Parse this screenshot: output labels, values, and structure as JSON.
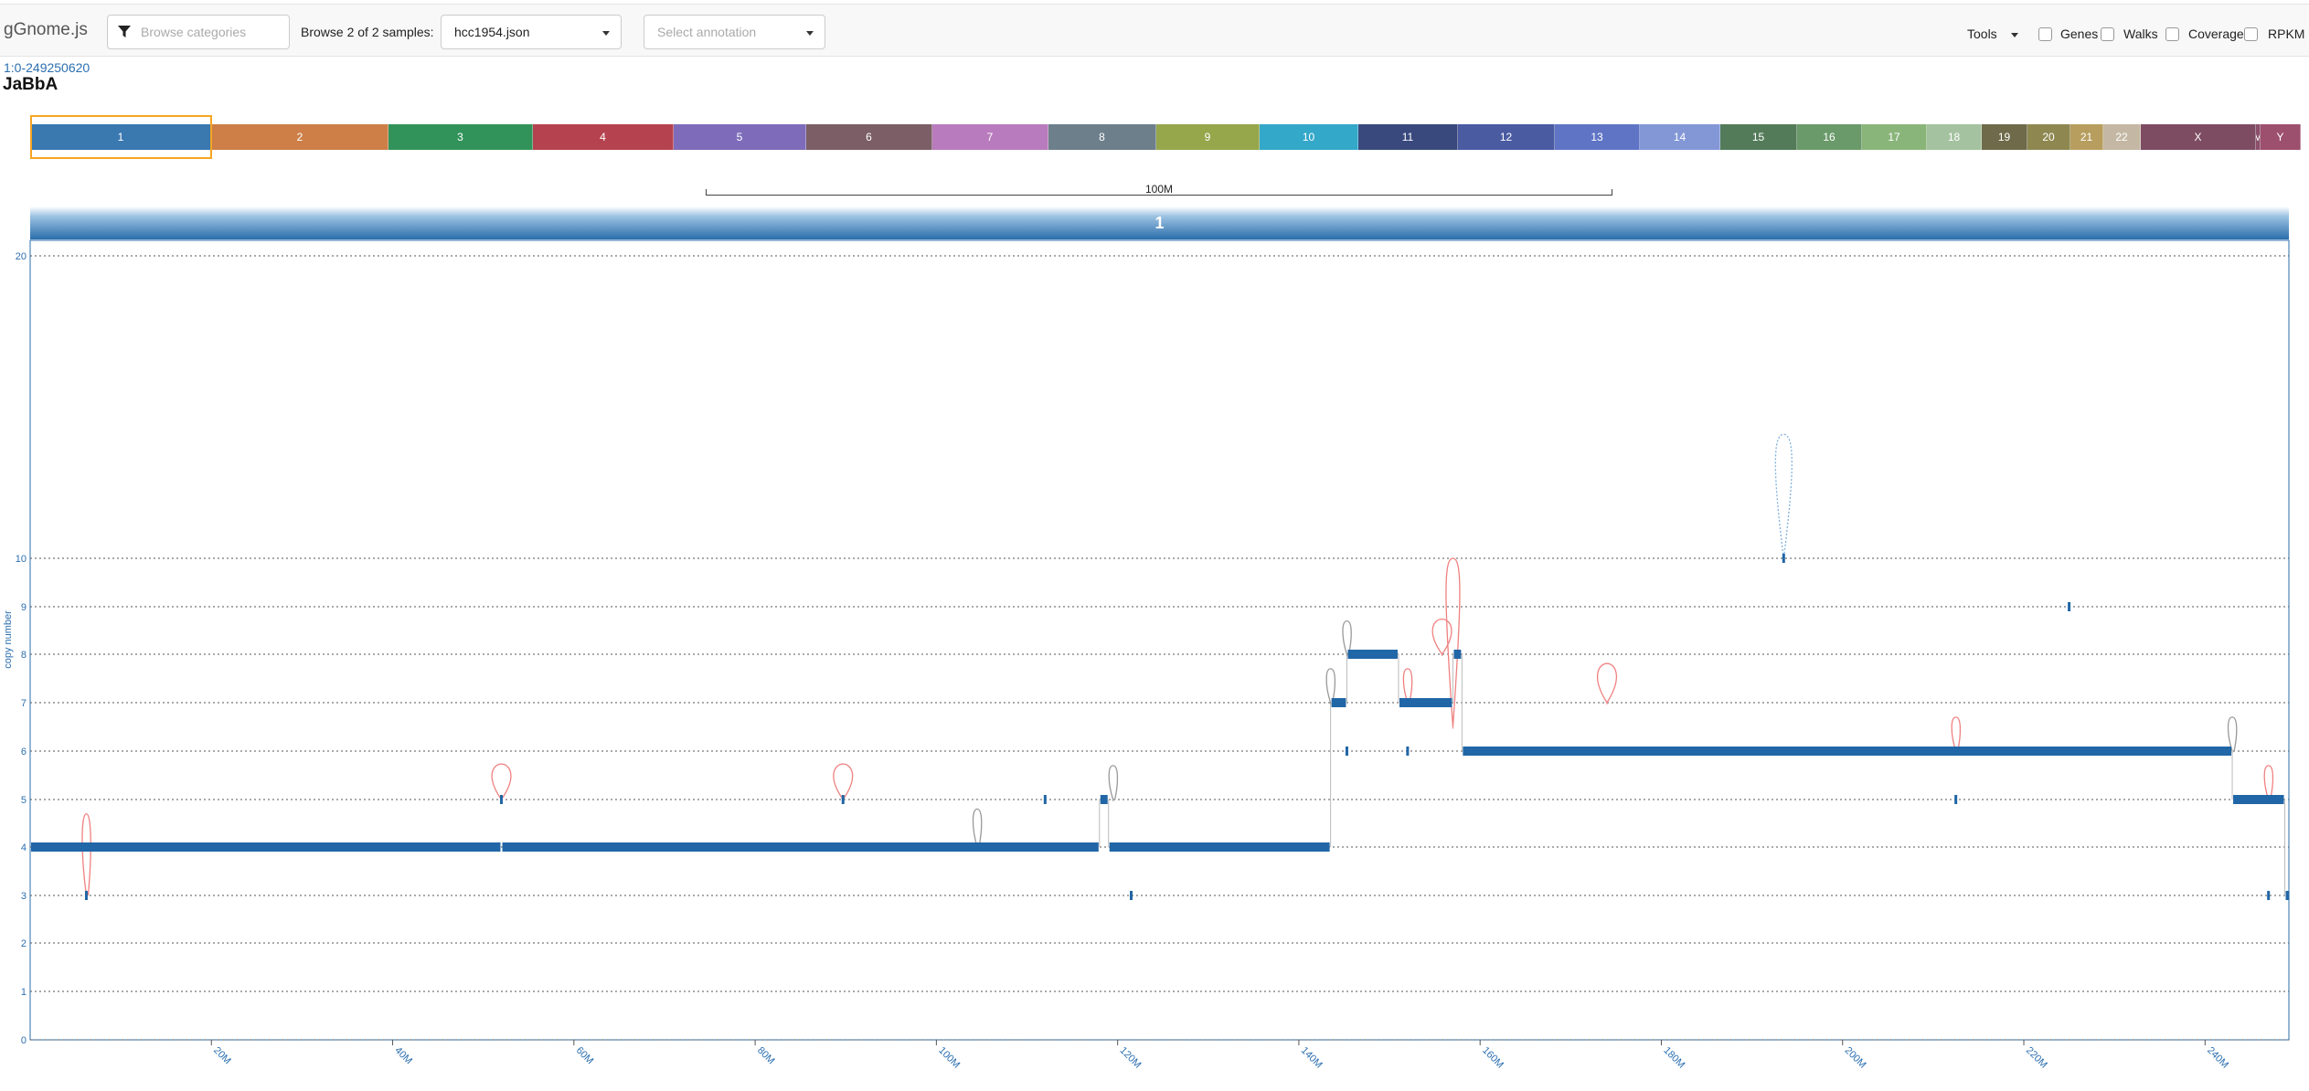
{
  "app": {
    "brand": "gGnome.js"
  },
  "toolbar": {
    "category_placeholder": "Browse categories",
    "browse_label": "Browse 2 of 2 samples:",
    "sample_value": "hcc1954.json",
    "annotation_placeholder": "Select annotation",
    "tools_label": "Tools",
    "toggles": [
      {
        "label": "Genes",
        "checked": false
      },
      {
        "label": "Walks",
        "checked": false
      },
      {
        "label": "Coverage",
        "checked": false
      },
      {
        "label": "RPKM",
        "checked": false
      }
    ]
  },
  "region": "1:0-249250620",
  "sample_title": "JaBbA",
  "chromosomes": [
    {
      "label": "1",
      "color": "#3a78b0",
      "selected": true
    },
    {
      "label": "2",
      "color": "#cd7f47"
    },
    {
      "label": "3",
      "color": "#32935a"
    },
    {
      "label": "4",
      "color": "#b5434f"
    },
    {
      "label": "5",
      "color": "#7e6cba"
    },
    {
      "label": "6",
      "color": "#7b5e66"
    },
    {
      "label": "7",
      "color": "#b87bbd"
    },
    {
      "label": "8",
      "color": "#6d7f8b"
    },
    {
      "label": "9",
      "color": "#96a64b"
    },
    {
      "label": "10",
      "color": "#34a8c9"
    },
    {
      "label": "11",
      "color": "#39497e"
    },
    {
      "label": "12",
      "color": "#4a5ba2"
    },
    {
      "label": "13",
      "color": "#5f74c5"
    },
    {
      "label": "14",
      "color": "#8397d6"
    },
    {
      "label": "15",
      "color": "#537b59"
    },
    {
      "label": "16",
      "color": "#6a9a6a"
    },
    {
      "label": "17",
      "color": "#8ab57a"
    },
    {
      "label": "18",
      "color": "#a5c2a0"
    },
    {
      "label": "19",
      "color": "#6e6a4a"
    },
    {
      "label": "20",
      "color": "#8e8850"
    },
    {
      "label": "21",
      "color": "#b79e5f"
    },
    {
      "label": "22",
      "color": "#c4b8a4"
    },
    {
      "label": "X",
      "color": "#7e4c62"
    },
    {
      "label": "M",
      "color": "#8a4f6a"
    },
    {
      "label": "Y",
      "color": "#9d4f6e"
    }
  ],
  "scale_bar_label": "100M",
  "panel_title": "1",
  "chart_data": {
    "type": "genome-graph",
    "chromosome": "1",
    "xlim": [
      0,
      249250620
    ],
    "ylim": [
      0,
      20
    ],
    "ylabel": "copy number",
    "y_ticks": [
      0,
      1,
      2,
      3,
      4,
      5,
      6,
      7,
      8,
      9,
      10,
      20
    ],
    "x_ticks": [
      "20M",
      "40M",
      "60M",
      "80M",
      "100M",
      "120M",
      "140M",
      "160M",
      "180M",
      "200M",
      "220M",
      "240M"
    ],
    "x_tick_values": [
      20000000,
      40000000,
      60000000,
      80000000,
      100000000,
      120000000,
      140000000,
      160000000,
      180000000,
      200000000,
      220000000,
      240000000
    ],
    "colors": {
      "segment": "#2166a6",
      "alt_edge": "#f08080",
      "ref_edge": "#999999",
      "loose_edge": "#7fb0dd"
    },
    "segments": [
      {
        "start": 0,
        "end": 52000000,
        "cn": 4
      },
      {
        "start": 52000000,
        "end": 118000000,
        "cn": 4
      },
      {
        "start": 118000000,
        "end": 119000000,
        "cn": 5
      },
      {
        "start": 119000000,
        "end": 143500000,
        "cn": 4
      },
      {
        "start": 143500000,
        "end": 145300000,
        "cn": 7
      },
      {
        "start": 145300000,
        "end": 151000000,
        "cn": 8
      },
      {
        "start": 151000000,
        "end": 157000000,
        "cn": 7
      },
      {
        "start": 157000000,
        "end": 158000000,
        "cn": 8
      },
      {
        "start": 158000000,
        "end": 243000000,
        "cn": 6
      },
      {
        "start": 243000000,
        "end": 248800000,
        "cn": 5
      },
      {
        "start": 248800000,
        "end": 249250620,
        "cn": 3
      }
    ],
    "markers": [
      {
        "pos": 6200000,
        "cn": 3
      },
      {
        "pos": 52000000,
        "cn": 5
      },
      {
        "pos": 89700000,
        "cn": 5
      },
      {
        "pos": 103700000,
        "cn": 4
      },
      {
        "pos": 112000000,
        "cn": 5
      },
      {
        "pos": 121500000,
        "cn": 3
      },
      {
        "pos": 145300000,
        "cn": 6
      },
      {
        "pos": 152000000,
        "cn": 6
      },
      {
        "pos": 193500000,
        "cn": 10
      },
      {
        "pos": 212500000,
        "cn": 5
      },
      {
        "pos": 225000000,
        "cn": 9
      },
      {
        "pos": 247000000,
        "cn": 3
      }
    ],
    "edges": [
      {
        "kind": "alt",
        "pos": 6200000,
        "from": 3,
        "to": 4.7,
        "shape": "arc"
      },
      {
        "kind": "alt",
        "pos": 52000000,
        "from": 5,
        "to": 5.6,
        "shape": "loop"
      },
      {
        "kind": "alt",
        "pos": 89700000,
        "from": 5,
        "to": 5.6,
        "shape": "loop"
      },
      {
        "kind": "ref",
        "pos": 104500000,
        "from": 4,
        "to": 4.8,
        "shape": "arc"
      },
      {
        "kind": "ref",
        "pos": 119500000,
        "from": 5,
        "to": 5.7,
        "shape": "arc"
      },
      {
        "kind": "ref",
        "pos": 143500000,
        "from": 7,
        "to": 7.7,
        "shape": "arc"
      },
      {
        "kind": "ref",
        "pos": 145300000,
        "from": 8,
        "to": 8.7,
        "shape": "arc"
      },
      {
        "kind": "alt",
        "pos": 152000000,
        "from": 7,
        "to": 7.7,
        "shape": "arc"
      },
      {
        "kind": "alt",
        "pos": 155800000,
        "from": 8,
        "to": 8.6,
        "shape": "loop"
      },
      {
        "kind": "alt",
        "pos": 157000000,
        "from": 6.5,
        "to": 10,
        "shape": "tall"
      },
      {
        "kind": "alt",
        "pos": 174000000,
        "from": 7,
        "to": 7.7,
        "shape": "loop"
      },
      {
        "kind": "loose",
        "pos": 193500000,
        "from": 10,
        "to": 14.1,
        "shape": "tall"
      },
      {
        "kind": "alt",
        "pos": 212500000,
        "from": 6,
        "to": 6.7,
        "shape": "arc"
      },
      {
        "kind": "ref",
        "pos": 243000000,
        "from": 6,
        "to": 6.7,
        "shape": "arc"
      },
      {
        "kind": "alt",
        "pos": 247000000,
        "from": 5,
        "to": 5.7,
        "shape": "arc"
      }
    ]
  }
}
